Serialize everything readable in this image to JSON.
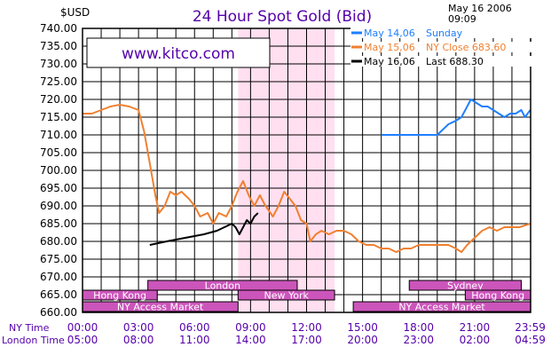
{
  "chart_data": {
    "type": "line",
    "title": "24 Hour Spot Gold (Bid)",
    "currency_label": "$USD",
    "timestamp_date": "May 16 2006",
    "timestamp_time": "09:09",
    "watermark": "www.kitco.com",
    "ylim": [
      660,
      740
    ],
    "y_ticks": [
      "740.00",
      "735.00",
      "730.00",
      "725.00",
      "720.00",
      "715.00",
      "710.00",
      "705.00",
      "700.00",
      "695.00",
      "690.00",
      "685.00",
      "680.00",
      "675.00",
      "670.00",
      "665.00",
      "660.00"
    ],
    "y_tick_values": [
      740,
      735,
      730,
      725,
      720,
      715,
      710,
      705,
      700,
      695,
      690,
      685,
      680,
      675,
      670,
      665,
      660
    ],
    "xlim": [
      0,
      24
    ],
    "x_row_label_ny": "NY Time",
    "x_row_label_london": "London Time",
    "x_ticks": [
      {
        "hour": 0,
        "ny": "00:00",
        "london": "05:00"
      },
      {
        "hour": 3,
        "ny": "03:00",
        "london": "08:00"
      },
      {
        "hour": 6,
        "ny": "06:00",
        "london": "11:00"
      },
      {
        "hour": 9,
        "ny": "09:00",
        "london": "14:00"
      },
      {
        "hour": 12,
        "ny": "12:00",
        "london": "17:00"
      },
      {
        "hour": 15,
        "ny": "15:00",
        "london": "20:00"
      },
      {
        "hour": 18,
        "ny": "18:00",
        "london": "23:00"
      },
      {
        "hour": 21,
        "ny": "21:00",
        "london": "02:00"
      },
      {
        "hour": 23.98,
        "ny": "23:59",
        "london": "04:59"
      }
    ],
    "shaded_session": {
      "start": 8.33,
      "end": 13.5,
      "color": "#ffdff0"
    },
    "legend": [
      {
        "label": "May 14,06",
        "note": "Sunday",
        "color": "#1f7fff"
      },
      {
        "label": "May 15,06",
        "note": "NY Close 683.60",
        "color": "#f08030"
      },
      {
        "label": "May 16,06",
        "note": "Last 688.30",
        "color": "#000000"
      }
    ],
    "series": [
      {
        "color": "#f08030",
        "points": [
          [
            0,
            716
          ],
          [
            0.5,
            716
          ],
          [
            1,
            717
          ],
          [
            1.5,
            718
          ],
          [
            2,
            718.5
          ],
          [
            2.5,
            718
          ],
          [
            3,
            717
          ],
          [
            3.3,
            711
          ],
          [
            3.6,
            702
          ],
          [
            3.9,
            693
          ],
          [
            4.1,
            688
          ],
          [
            4.4,
            690
          ],
          [
            4.7,
            694
          ],
          [
            5,
            693
          ],
          [
            5.3,
            694
          ],
          [
            5.7,
            692
          ],
          [
            6,
            690
          ],
          [
            6.3,
            687
          ],
          [
            6.7,
            688
          ],
          [
            7,
            685
          ],
          [
            7.3,
            688
          ],
          [
            7.7,
            687
          ],
          [
            8,
            690
          ],
          [
            8.3,
            694
          ],
          [
            8.6,
            697
          ],
          [
            8.9,
            693
          ],
          [
            9.2,
            690
          ],
          [
            9.5,
            693
          ],
          [
            9.8,
            690
          ],
          [
            10.2,
            687
          ],
          [
            10.5,
            690
          ],
          [
            10.8,
            694
          ],
          [
            11.1,
            692
          ],
          [
            11.4,
            690
          ],
          [
            11.7,
            686
          ],
          [
            12,
            685
          ],
          [
            12.2,
            680
          ],
          [
            12.5,
            682
          ],
          [
            12.8,
            683
          ],
          [
            13.2,
            682
          ],
          [
            13.6,
            683
          ],
          [
            14,
            683
          ],
          [
            14.4,
            682
          ],
          [
            14.8,
            680
          ],
          [
            15.2,
            679
          ],
          [
            15.6,
            679
          ],
          [
            16,
            678
          ],
          [
            16.4,
            678
          ],
          [
            16.8,
            677
          ],
          [
            17.2,
            678
          ],
          [
            17.6,
            678
          ],
          [
            18,
            679
          ],
          [
            18.4,
            679
          ],
          [
            18.8,
            679
          ],
          [
            19.2,
            679
          ],
          [
            19.6,
            679
          ],
          [
            20,
            678
          ],
          [
            20.3,
            677
          ],
          [
            20.6,
            679
          ],
          [
            21,
            681
          ],
          [
            21.4,
            683
          ],
          [
            21.8,
            684
          ],
          [
            22.2,
            683
          ],
          [
            22.6,
            684
          ],
          [
            23,
            684
          ],
          [
            23.4,
            684
          ],
          [
            23.98,
            685
          ]
        ]
      },
      {
        "color": "#1f7fff",
        "points": [
          [
            16,
            710
          ],
          [
            17,
            710
          ],
          [
            18,
            710
          ],
          [
            19,
            710
          ],
          [
            19.6,
            713
          ],
          [
            20,
            714
          ],
          [
            20.3,
            715
          ],
          [
            20.6,
            718
          ],
          [
            20.8,
            720
          ],
          [
            21.1,
            719
          ],
          [
            21.4,
            718
          ],
          [
            21.7,
            718
          ],
          [
            22,
            717
          ],
          [
            22.3,
            716
          ],
          [
            22.6,
            715
          ],
          [
            22.9,
            716
          ],
          [
            23.2,
            716
          ],
          [
            23.5,
            717
          ],
          [
            23.7,
            715
          ],
          [
            23.98,
            717
          ]
        ]
      },
      {
        "color": "#000000",
        "points": [
          [
            3.6,
            679
          ],
          [
            4.5,
            680
          ],
          [
            5.5,
            681
          ],
          [
            6.5,
            682
          ],
          [
            7.2,
            683
          ],
          [
            7.6,
            684
          ],
          [
            8,
            685
          ],
          [
            8.2,
            684
          ],
          [
            8.4,
            682
          ],
          [
            8.6,
            684
          ],
          [
            8.8,
            686
          ],
          [
            9,
            685
          ],
          [
            9.2,
            687
          ],
          [
            9.4,
            688
          ]
        ]
      }
    ],
    "sessions": [
      {
        "name": "London",
        "start": 3.5,
        "end": 11.5,
        "row": 0
      },
      {
        "name": "Sydney",
        "start": 17.5,
        "end": 23.5,
        "row": 0
      },
      {
        "name": "Hong Kong",
        "start": 0,
        "end": 4,
        "row": 1
      },
      {
        "name": "New York",
        "start": 8.33,
        "end": 13.5,
        "row": 1
      },
      {
        "name": "Hong Kong",
        "start": 20.5,
        "end": 24,
        "row": 1
      },
      {
        "name": "NY Access Market",
        "start": 0,
        "end": 8.33,
        "row": 2
      },
      {
        "name": "NY Access Market",
        "start": 14.5,
        "end": 24,
        "row": 2
      }
    ],
    "session_color": "#cc55bb",
    "grid": true
  }
}
